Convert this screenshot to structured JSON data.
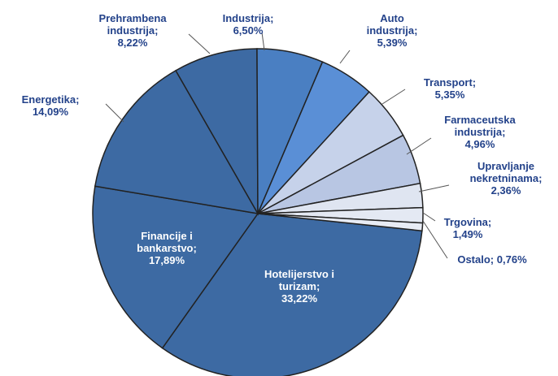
{
  "chart_data": {
    "type": "pie",
    "categories": [
      "Hotelijerstvo i turizam;",
      "Financije i bankarstvo;",
      "Energetika;",
      "Prehrambena industrija;",
      "Industrija;",
      "Auto industrija;",
      "Transport;",
      "Farmaceutska industrija;",
      "Upravljanje nekretninama;",
      "Trgovina;",
      "Ostalo;"
    ],
    "values": [
      33.22,
      17.89,
      14.09,
      8.22,
      6.5,
      5.39,
      5.35,
      4.96,
      2.36,
      1.49,
      0.76
    ],
    "value_labels": [
      "33,22%",
      "17,89%",
      "14,09%",
      "8,22%",
      "6,50%",
      "5,39%",
      "5,35%",
      "4,96%",
      "2,36%",
      "1,49%",
      "0,76%"
    ],
    "colors": [
      "#3d6aa3",
      "#3d6aa3",
      "#3d6aa3",
      "#3d6aa3",
      "#4a7fc2",
      "#5a8fd6",
      "#c6d2ea",
      "#b8c6e3",
      "#dfe5f1",
      "#e4e9f3",
      "#e8ecf5"
    ]
  }
}
